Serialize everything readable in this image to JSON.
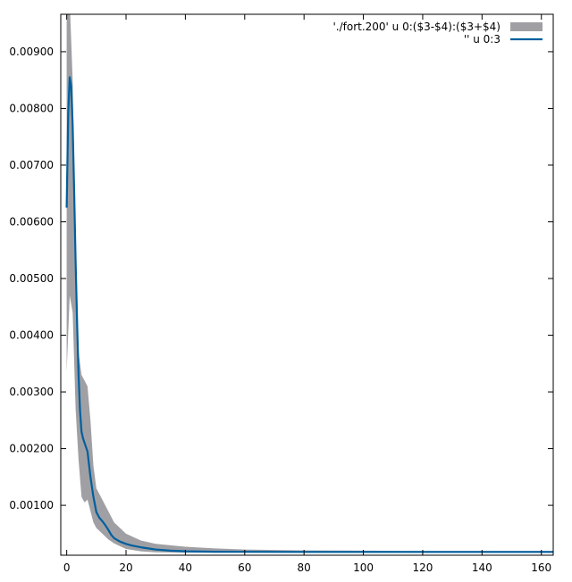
{
  "chart_data": {
    "type": "line",
    "title": "",
    "xlabel": "",
    "ylabel": "",
    "xlim": [
      -2,
      164
    ],
    "ylim": [
      0.00012,
      0.00966
    ],
    "x_ticks": [
      0,
      20,
      40,
      60,
      80,
      100,
      120,
      140,
      160
    ],
    "x_tick_labels": [
      "0",
      "20",
      "40",
      "60",
      "80",
      "100",
      "120",
      "140",
      "160"
    ],
    "y_ticks": [
      0.001,
      0.002,
      0.003,
      0.004,
      0.005,
      0.006,
      0.007,
      0.008,
      0.009
    ],
    "y_tick_labels": [
      "0.00100",
      "0.00200",
      "0.00300",
      "0.00400",
      "0.00500",
      "0.00600",
      "0.00700",
      "0.00800",
      "0.00900"
    ],
    "grid": false,
    "legend_position": "top-right",
    "series": [
      {
        "name": "'./fort.200' u 0:($3-$4):($3+$4)",
        "style": "filledcurves",
        "color": "#a0a0a4",
        "x": [
          0,
          1,
          2,
          3,
          4,
          5,
          6,
          7,
          8,
          9,
          10,
          12,
          14,
          16,
          20,
          25,
          30,
          40,
          50,
          60,
          80,
          100,
          120,
          140,
          160,
          164
        ],
        "lower": [
          0.00335,
          0.0047,
          0.0044,
          0.0027,
          0.0018,
          0.00115,
          0.00105,
          0.0011,
          0.0009,
          0.0007,
          0.0006,
          0.0005,
          0.0004,
          0.00033,
          0.00023,
          0.00019,
          0.00017,
          0.000165,
          0.000165,
          0.000165,
          0.000165,
          0.000165,
          0.000165,
          0.000165,
          0.000165,
          0.000165
        ],
        "upper": [
          0.0097,
          0.0099,
          0.0085,
          0.0055,
          0.0037,
          0.0033,
          0.0032,
          0.0031,
          0.0025,
          0.0017,
          0.0013,
          0.0011,
          0.0009,
          0.0007,
          0.0005,
          0.00038,
          0.00032,
          0.00027,
          0.00024,
          0.00022,
          0.000205,
          0.0002,
          0.000195,
          0.000195,
          0.000195,
          0.000195
        ]
      },
      {
        "name": "'' u 0:3",
        "style": "line",
        "color": "#005f9e",
        "x": [
          0,
          0.5,
          1,
          1.5,
          2,
          2.5,
          3,
          3.5,
          4,
          4.5,
          5,
          5.5,
          6,
          7,
          8,
          9,
          10,
          11,
          12,
          13,
          14,
          15,
          16,
          18,
          20,
          22,
          25,
          30,
          35,
          40,
          50,
          60,
          80,
          100,
          120,
          140,
          160,
          164
        ],
        "y": [
          0.00625,
          0.0079,
          0.00855,
          0.0084,
          0.0077,
          0.0066,
          0.0053,
          0.0042,
          0.0033,
          0.00265,
          0.0023,
          0.00218,
          0.0021,
          0.00195,
          0.0015,
          0.00115,
          0.00088,
          0.00078,
          0.00072,
          0.00065,
          0.00057,
          0.00048,
          0.00042,
          0.00036,
          0.00032,
          0.00029,
          0.00026,
          0.00022,
          0.0002,
          0.00019,
          0.000182,
          0.00018,
          0.000178,
          0.000178,
          0.000178,
          0.000178,
          0.000178,
          0.000178
        ]
      }
    ]
  }
}
